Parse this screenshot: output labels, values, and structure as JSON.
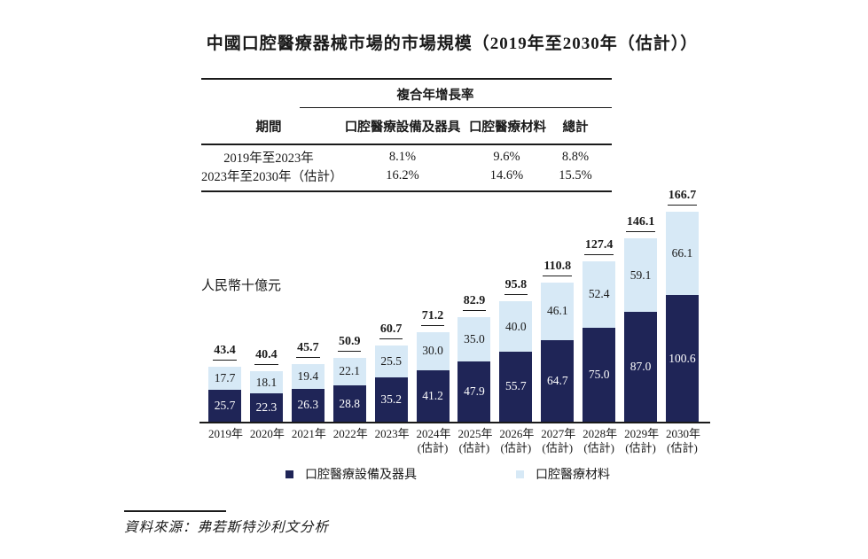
{
  "page": {
    "title": "中國口腔醫療器械市場的市場規模（2019年至2030年（估計））"
  },
  "colors": {
    "equipment_bar": "#1f2557",
    "materials_bar": "#d7e9f6",
    "ink": "#1a1a1a"
  },
  "table": {
    "cagr_header": "複合年增長率",
    "columns": {
      "period": "期間",
      "equipment": "口腔醫療設備及器具",
      "materials": "口腔醫療材料",
      "total": "總計"
    },
    "rows": [
      {
        "period": "2019年至2023年",
        "equipment": "8.1%",
        "materials": "9.6%",
        "total": "8.8%"
      },
      {
        "period": "2023年至2030年（估計）",
        "equipment": "16.2%",
        "materials": "14.6%",
        "total": "15.5%"
      }
    ]
  },
  "chart": {
    "unit_label": "人民幣十億元"
  },
  "chart_data": {
    "type": "bar",
    "stacked": true,
    "title": "中國口腔醫療器械市場的市場規模（2019年至2030年（估計））",
    "unit": "人民幣十億元",
    "ylabel": "人民幣十億元",
    "xlabel": "",
    "ylim": [
      0,
      170
    ],
    "grid": false,
    "legend_position": "bottom",
    "categories": [
      {
        "year": "2019年",
        "note": ""
      },
      {
        "year": "2020年",
        "note": ""
      },
      {
        "year": "2021年",
        "note": ""
      },
      {
        "year": "2022年",
        "note": ""
      },
      {
        "year": "2023年",
        "note": ""
      },
      {
        "year": "2024年",
        "note": "(估計)"
      },
      {
        "year": "2025年",
        "note": "(估計)"
      },
      {
        "year": "2026年",
        "note": "(估計)"
      },
      {
        "year": "2027年",
        "note": "(估計)"
      },
      {
        "year": "2028年",
        "note": "(估計)"
      },
      {
        "year": "2029年",
        "note": "(估計)"
      },
      {
        "year": "2030年",
        "note": "(估計)"
      }
    ],
    "series": [
      {
        "name": "口腔醫療設備及器具",
        "color": "#1f2557",
        "values": [
          25.7,
          22.3,
          26.3,
          28.8,
          35.2,
          41.2,
          47.9,
          55.7,
          64.7,
          75.0,
          87.0,
          100.6
        ]
      },
      {
        "name": "口腔醫療材料",
        "color": "#d7e9f6",
        "values": [
          17.7,
          18.1,
          19.4,
          22.1,
          25.5,
          30.0,
          35.0,
          40.0,
          46.1,
          52.4,
          59.1,
          66.1
        ]
      }
    ],
    "totals": [
      43.4,
      40.4,
      45.7,
      50.9,
      60.7,
      71.2,
      82.9,
      95.8,
      110.8,
      127.4,
      146.1,
      166.7
    ]
  },
  "source": {
    "text": "資料來源：弗若斯特沙利文分析"
  }
}
